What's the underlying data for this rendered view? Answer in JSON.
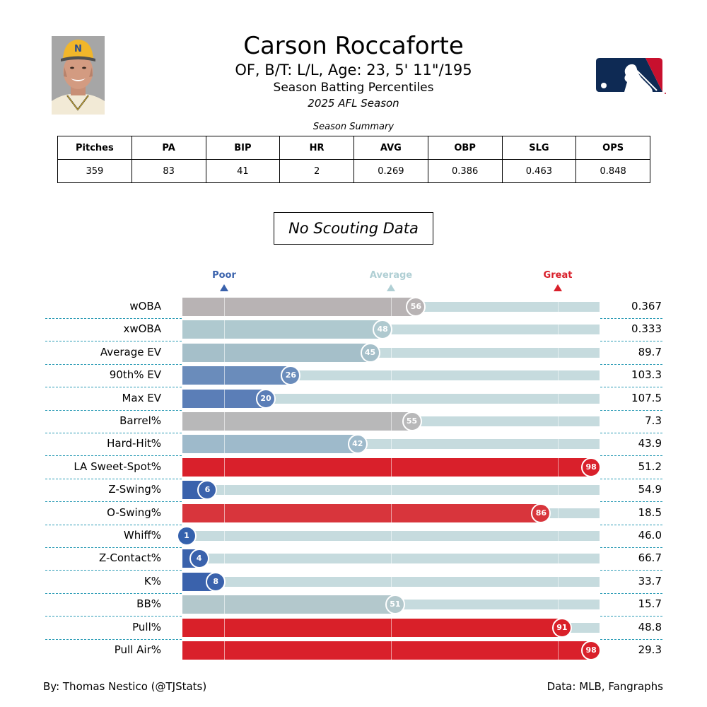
{
  "header": {
    "player_name": "Carson Roccaforte",
    "subtitle": "OF, B/T: L/L, Age: 23, 5' 11\"/195",
    "report_title": "Season Batting Percentiles",
    "season": "2025 AFL Season",
    "photo": "player-headshot",
    "logo": "mlb-logo"
  },
  "summary": {
    "caption": "Season Summary",
    "columns": [
      "Pitches",
      "PA",
      "BIP",
      "HR",
      "AVG",
      "OBP",
      "SLG",
      "OPS"
    ],
    "values": [
      "359",
      "83",
      "41",
      "2",
      "0.269",
      "0.386",
      "0.463",
      "0.848"
    ]
  },
  "scouting": {
    "text": "No Scouting Data"
  },
  "scale": {
    "poor": {
      "label": "Poor",
      "color": "#3a62ac",
      "pct": 10
    },
    "average": {
      "label": "Average",
      "color": "#b0cfd4",
      "pct": 50
    },
    "great": {
      "label": "Great",
      "color": "#d9202b",
      "pct": 90
    }
  },
  "footer": {
    "credit": "By: Thomas Nestico (@TJStats)",
    "source": "Data: MLB, Fangraphs"
  },
  "chart_data": {
    "type": "bar",
    "orientation": "horizontal",
    "title": "Season Batting Percentiles",
    "xlim": [
      0,
      100
    ],
    "reference_lines": [
      10,
      50,
      90
    ],
    "reference_labels": [
      "Poor",
      "Average",
      "Great"
    ],
    "categories": [
      "wOBA",
      "xwOBA",
      "Average EV",
      "90th% EV",
      "Max EV",
      "Barrel%",
      "Hard-Hit%",
      "LA Sweet-Spot%",
      "Z-Swing%",
      "O-Swing%",
      "Whiff%",
      "Z-Contact%",
      "K%",
      "BB%",
      "Pull%",
      "Pull Air%"
    ],
    "percentiles": [
      56,
      48,
      45,
      26,
      20,
      55,
      42,
      98,
      6,
      86,
      1,
      4,
      8,
      51,
      91,
      98
    ],
    "stat_values": [
      "0.367",
      "0.333",
      "89.7",
      "103.3",
      "107.5",
      "7.3",
      "43.9",
      "51.2",
      "54.9",
      "18.5",
      "46.0",
      "66.7",
      "33.7",
      "15.7",
      "48.8",
      "29.3"
    ],
    "colors": [
      "#b8b3b4",
      "#afc9cf",
      "#a5bfc9",
      "#6a8cbb",
      "#5b7eb7",
      "#b8b8b9",
      "#9ebacb",
      "#d9202b",
      "#3a62ac",
      "#d8353c",
      "#3461ad",
      "#3a62ac",
      "#3a62ac",
      "#b3c8cc",
      "#d92029",
      "#d9202b"
    ]
  }
}
